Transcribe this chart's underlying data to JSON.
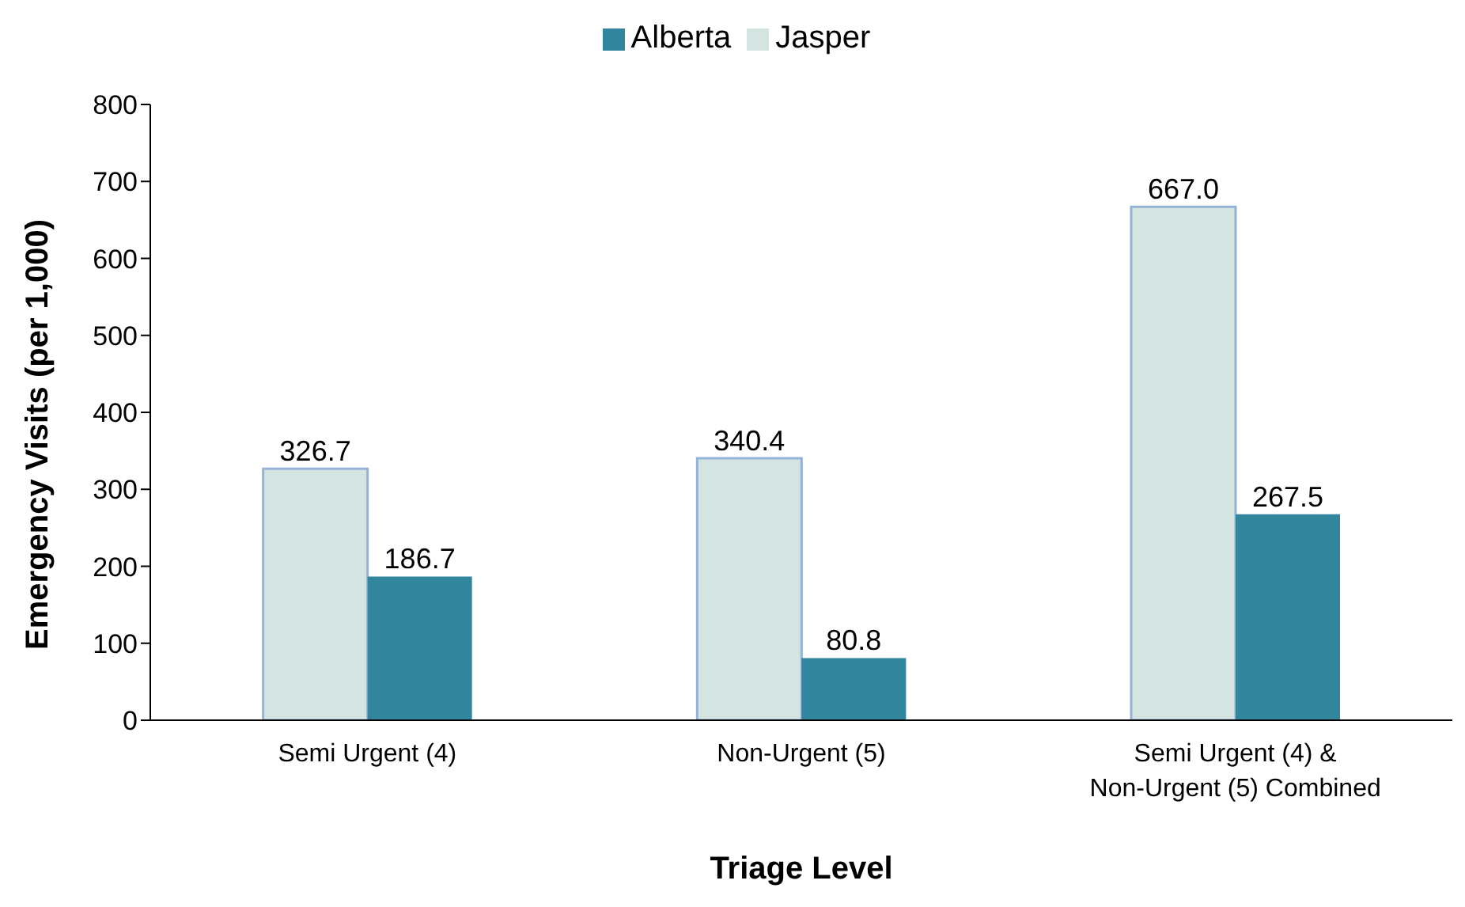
{
  "chart_data": {
    "type": "bar",
    "xlabel": "Triage Level",
    "ylabel": "Emergency Visits (per 1,000)",
    "categories": [
      "Semi Urgent (4)",
      "Non-Urgent (5)",
      "Semi Urgent (4) & Non-Urgent (5) Combined"
    ],
    "series": [
      {
        "name": "Jasper",
        "color": "#d3e4e1",
        "values": [
          326.7,
          340.4,
          667.0
        ],
        "value_labels": [
          "326.7",
          "340.4",
          "667.0"
        ]
      },
      {
        "name": "Alberta",
        "color": "#31859c",
        "values": [
          186.7,
          80.8,
          267.5
        ],
        "value_labels": [
          "186.7",
          "80.8",
          "267.5"
        ]
      }
    ],
    "ylim": [
      0,
      800
    ],
    "yticks": [
      0,
      100,
      200,
      300,
      400,
      500,
      600,
      700,
      800
    ],
    "grid": false,
    "legend": "top"
  }
}
